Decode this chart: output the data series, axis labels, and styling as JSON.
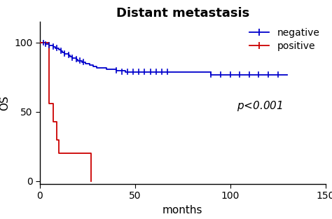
{
  "title": "Distant metastasis",
  "xlabel": "months",
  "ylabel": "OS",
  "xlim": [
    0,
    150
  ],
  "ylim": [
    -2,
    115
  ],
  "yticks": [
    0,
    50,
    100
  ],
  "xticks": [
    0,
    50,
    100,
    150
  ],
  "negative_color": "#0000CC",
  "positive_color": "#CC0000",
  "negative_steps_x": [
    0,
    1,
    2,
    3,
    4,
    5,
    6,
    7,
    8,
    9,
    10,
    11,
    12,
    13,
    14,
    15,
    16,
    17,
    18,
    19,
    20,
    21,
    22,
    23,
    24,
    25,
    26,
    28,
    30,
    32,
    35,
    40,
    45,
    50,
    55,
    60,
    65,
    70,
    75,
    80,
    85,
    88,
    90,
    95,
    100,
    105,
    110,
    115,
    120,
    125,
    130
  ],
  "negative_steps_y": [
    100,
    100,
    100,
    99,
    99,
    98,
    98,
    97,
    96,
    96,
    95,
    94,
    93,
    92,
    92,
    91,
    90,
    89,
    89,
    88,
    87,
    87,
    86,
    86,
    85,
    85,
    84,
    83,
    82,
    82,
    81,
    80,
    79,
    79,
    79,
    79,
    79,
    79,
    79,
    79,
    79,
    79,
    77,
    77,
    77,
    77,
    77,
    77,
    77,
    77,
    77
  ],
  "positive_steps_x": [
    0,
    5,
    7,
    9,
    10,
    14,
    25,
    27
  ],
  "positive_steps_y": [
    100,
    56,
    43,
    30,
    20,
    20,
    20,
    0
  ],
  "neg_censors_x": [
    2,
    3,
    5,
    7,
    9,
    11,
    13,
    15,
    17,
    19,
    21,
    23,
    40,
    43,
    46,
    49,
    52,
    55,
    58,
    61,
    64,
    67,
    90,
    95,
    100,
    105,
    110,
    115,
    120,
    125
  ],
  "neg_censors_y": [
    100,
    99,
    98,
    97,
    96,
    94,
    92,
    91,
    89,
    88,
    87,
    86,
    80,
    79,
    79,
    79,
    79,
    79,
    79,
    79,
    79,
    79,
    77,
    77,
    77,
    77,
    77,
    77,
    77,
    77
  ],
  "pos_censors_x": [],
  "pos_censors_y": [],
  "pvalue_text": "$p$<0.001",
  "title_fontsize": 13,
  "label_fontsize": 11,
  "tick_fontsize": 10,
  "legend_fontsize": 10,
  "bg_color": "#ffffff",
  "figsize": [
    4.74,
    3.13
  ],
  "dpi": 100
}
